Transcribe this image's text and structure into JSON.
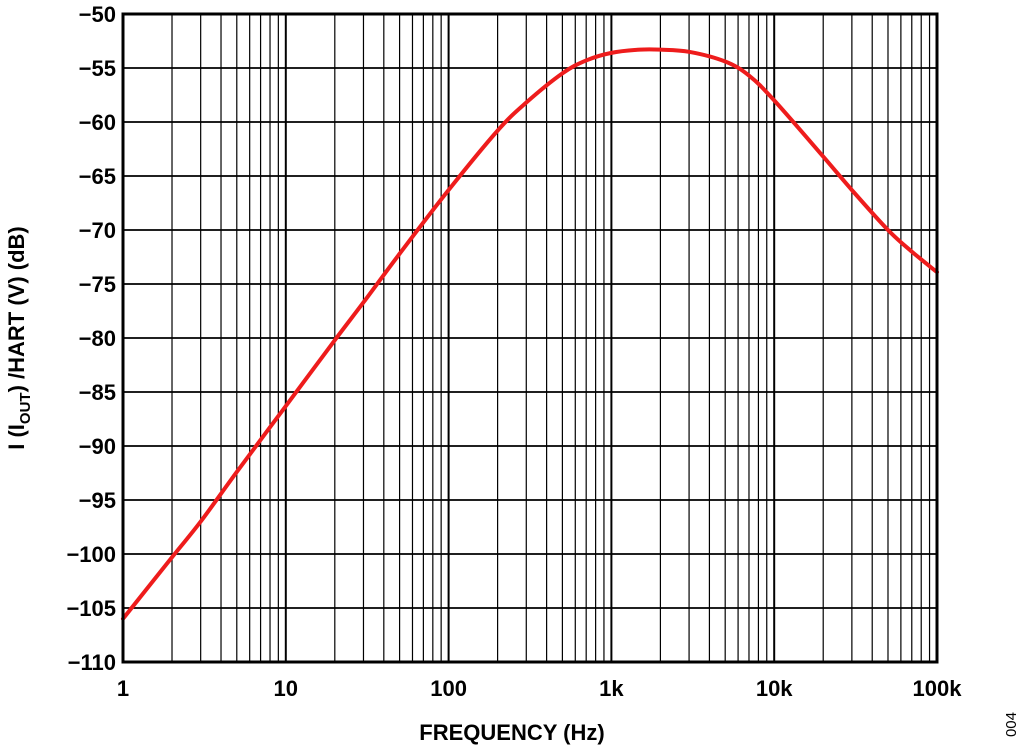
{
  "chart_data": {
    "type": "line",
    "xscale": "log",
    "xlim": [
      1,
      100000
    ],
    "ylim": [
      -110,
      -50
    ],
    "grid": true,
    "xlabel": "FREQUENCY (Hz)",
    "ylabel": {
      "pre": "I (I",
      "sub": "OUT",
      "post": ") /HART (V) (dB)"
    },
    "x_ticks": [
      {
        "value": 1,
        "label": "1"
      },
      {
        "value": 10,
        "label": "10"
      },
      {
        "value": 100,
        "label": "100"
      },
      {
        "value": 1000,
        "label": "1k"
      },
      {
        "value": 10000,
        "label": "10k"
      },
      {
        "value": 100000,
        "label": "100k"
      }
    ],
    "y_ticks": [
      {
        "value": -50,
        "label": "−50"
      },
      {
        "value": -55,
        "label": "−55"
      },
      {
        "value": -60,
        "label": "−60"
      },
      {
        "value": -65,
        "label": "−65"
      },
      {
        "value": -70,
        "label": "−70"
      },
      {
        "value": -75,
        "label": "−75"
      },
      {
        "value": -80,
        "label": "−80"
      },
      {
        "value": -85,
        "label": "−85"
      },
      {
        "value": -90,
        "label": "−90"
      },
      {
        "value": -95,
        "label": "−95"
      },
      {
        "value": -100,
        "label": "−100"
      },
      {
        "value": -105,
        "label": "−105"
      },
      {
        "value": -110,
        "label": "−110"
      }
    ],
    "series": [
      {
        "color": "#ee1c1c",
        "x": [
          1,
          2,
          3,
          5,
          10,
          20,
          30,
          50,
          100,
          200,
          300,
          500,
          700,
          1000,
          1500,
          2000,
          3000,
          5000,
          7000,
          10000,
          20000,
          30000,
          50000,
          70000,
          100000
        ],
        "y": [
          -106,
          -100.3,
          -97,
          -92.4,
          -86.3,
          -80.2,
          -76.7,
          -72.2,
          -66.3,
          -60.8,
          -58.2,
          -55.5,
          -54.3,
          -53.6,
          -53.3,
          -53.3,
          -53.5,
          -54.4,
          -55.7,
          -58.0,
          -63.2,
          -66.3,
          -70.0,
          -72.0,
          -73.9
        ]
      }
    ],
    "figure_id": "004"
  }
}
